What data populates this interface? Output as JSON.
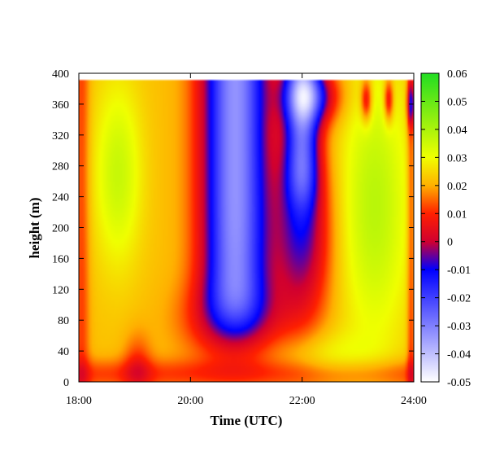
{
  "chart_data": {
    "type": "heatmap",
    "xlabel": "Time (UTC)",
    "ylabel": "height (m)",
    "x_unit": "hours UTC",
    "x_ticks": [
      "18:00",
      "20:00",
      "22:00",
      "24:00"
    ],
    "x_tick_values": [
      18,
      20,
      22,
      24
    ],
    "xlim": [
      18,
      24
    ],
    "y_ticks": [
      "0",
      "40",
      "80",
      "120",
      "160",
      "200",
      "240",
      "280",
      "320",
      "360",
      "400"
    ],
    "y_tick_values": [
      0,
      40,
      80,
      120,
      160,
      200,
      240,
      280,
      320,
      360,
      400
    ],
    "ylim": [
      0,
      400
    ],
    "data_top": 390,
    "colorbar": {
      "ticks": [
        "-0.05",
        "-0.04",
        "-0.03",
        "-0.02",
        "-0.01",
        "0",
        "0.01",
        "0.02",
        "0.03",
        "0.04",
        "0.05",
        "0.06"
      ],
      "tick_values": [
        -0.05,
        -0.04,
        -0.03,
        -0.02,
        -0.01,
        0,
        0.01,
        0.02,
        0.03,
        0.04,
        0.05,
        0.06
      ],
      "range": [
        -0.05,
        0.06
      ],
      "colors": {
        "-0.05": "#ffffff",
        "-0.01": "#0000ff",
        "0": "#d00030",
        "0.01": "#ff2000",
        "0.02": "#ffb000",
        "0.03": "#f0ff00",
        "0.06": "#22dd22"
      }
    },
    "grid": false
  }
}
